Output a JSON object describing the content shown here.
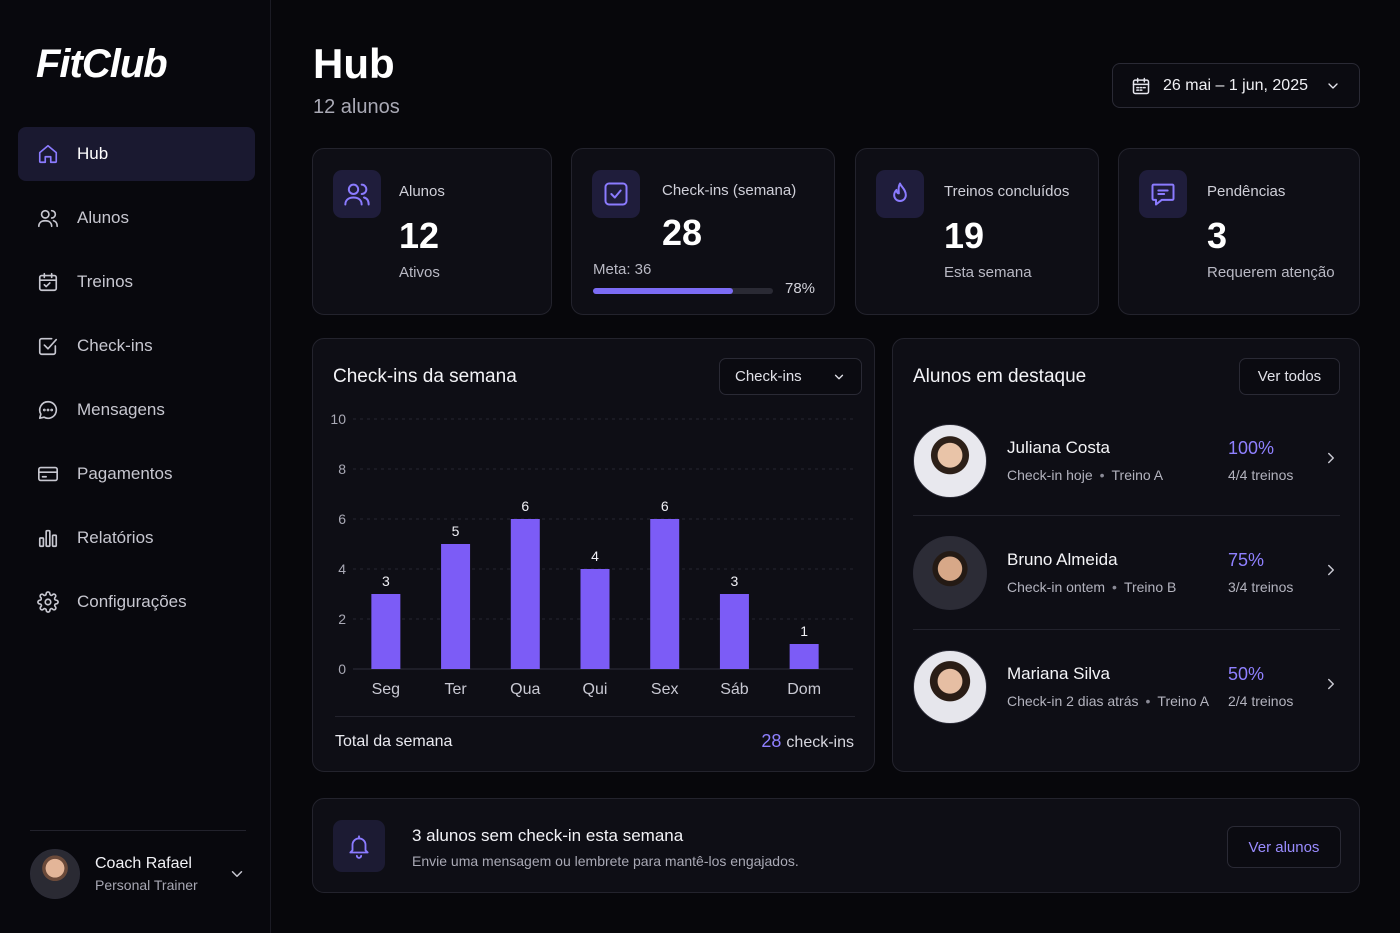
{
  "app": {
    "logo": "FitClub"
  },
  "sidebar": {
    "items": [
      {
        "label": "Hub",
        "icon": "home-icon",
        "active": true
      },
      {
        "label": "Alunos",
        "icon": "users-icon"
      },
      {
        "label": "Treinos",
        "icon": "calendar-icon"
      },
      {
        "label": "Check-ins",
        "icon": "check-square-icon"
      },
      {
        "label": "Mensagens",
        "icon": "message-icon"
      },
      {
        "label": "Pagamentos",
        "icon": "card-icon"
      },
      {
        "label": "Relatórios",
        "icon": "bar-chart-icon"
      },
      {
        "label": "Configurações",
        "icon": "gear-icon"
      }
    ],
    "profile": {
      "name": "Coach Rafael",
      "role": "Personal Trainer"
    }
  },
  "header": {
    "title": "Hub",
    "subtitle": "12 alunos",
    "date_range": "26 mai – 1 jun, 2025"
  },
  "stats": [
    {
      "label": "Alunos",
      "value": "12",
      "sub": "Ativos",
      "icon": "users-icon"
    },
    {
      "label": "Check-ins (semana)",
      "value": "28",
      "sub": "Meta: 36",
      "progress": 0.78,
      "progress_label": "78%",
      "icon": "check-square-icon"
    },
    {
      "label": "Treinos concluídos",
      "value": "19",
      "sub": "Esta semana",
      "icon": "flame-icon"
    },
    {
      "label": "Pendências",
      "value": "3",
      "sub": "Requerem atenção",
      "icon": "message-icon"
    }
  ],
  "checkins_panel": {
    "title": "Check-ins da semana",
    "select_value": "Check-ins",
    "total_label": "Total da semana",
    "total_value": "28",
    "total_unit": "check-ins"
  },
  "chart_data": {
    "type": "bar",
    "categories": [
      "Seg",
      "Ter",
      "Qua",
      "Qui",
      "Sex",
      "Sáb",
      "Dom"
    ],
    "values": [
      3,
      5,
      6,
      4,
      6,
      3,
      1
    ],
    "yticks": [
      0,
      2,
      4,
      6,
      8,
      10
    ],
    "ylim": [
      0,
      10
    ],
    "grid": true,
    "color": "#7c5cf6"
  },
  "students_panel": {
    "title": "Alunos em destaque",
    "view_all": "Ver todos",
    "students": [
      {
        "name": "Juliana Costa",
        "checkin": "Check-in hoje",
        "workout": "Treino A",
        "pct": "100%",
        "count": "4/4 treinos"
      },
      {
        "name": "Bruno Almeida",
        "checkin": "Check-in ontem",
        "workout": "Treino B",
        "pct": "75%",
        "count": "3/4 treinos"
      },
      {
        "name": "Mariana Silva",
        "checkin": "Check-in 2 dias atrás",
        "workout": "Treino A",
        "pct": "50%",
        "count": "2/4 treinos"
      }
    ]
  },
  "alert": {
    "title": "3 alunos sem check-in esta semana",
    "text": "Envie uma mensagem ou lembrete para mantê-los engajados.",
    "button": "Ver alunos"
  },
  "colors": {
    "accent": "#7c5cf6",
    "accent_text": "#8f80ff",
    "background": "#07070b",
    "card": "#0e0e15"
  }
}
